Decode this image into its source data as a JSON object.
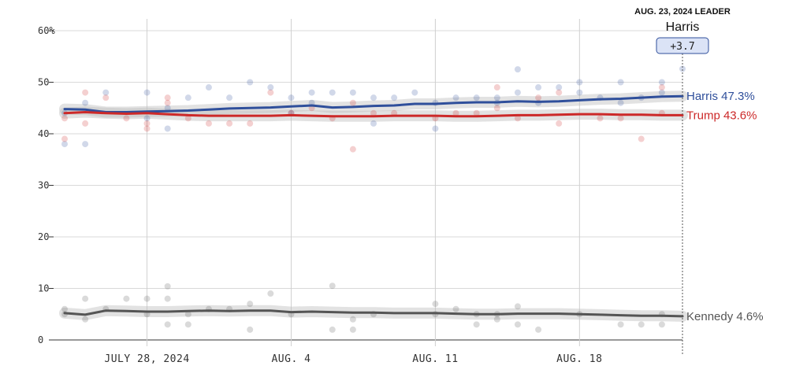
{
  "chart_data": {
    "type": "line",
    "title": "",
    "xlabel": "",
    "ylabel": "",
    "ylim": [
      0,
      60
    ],
    "y_ticks": [
      "0",
      "10",
      "20",
      "30",
      "40",
      "50",
      "60%"
    ],
    "x_ticks": [
      {
        "date": "2024-07-28",
        "label": "JULY 28, 2024"
      },
      {
        "date": "2024-08-04",
        "label": "AUG. 4"
      },
      {
        "date": "2024-08-11",
        "label": "AUG. 11"
      },
      {
        "date": "2024-08-18",
        "label": "AUG. 18"
      }
    ],
    "x_range": [
      "2024-07-24",
      "2024-08-23"
    ],
    "grid": true,
    "leader": {
      "heading": "AUG. 23, 2024 LEADER",
      "name": "Harris",
      "margin": "+3.7",
      "date": "2024-08-23"
    },
    "series": [
      {
        "name": "Harris",
        "end_label": "Harris 47.3%",
        "color": "#2f4f9b",
        "points": [
          [
            "2024-07-24",
            44.8
          ],
          [
            "2024-07-25",
            44.7
          ],
          [
            "2024-07-26",
            44.2
          ],
          [
            "2024-07-27",
            44.2
          ],
          [
            "2024-07-28",
            44.3
          ],
          [
            "2024-07-29",
            44.4
          ],
          [
            "2024-07-30",
            44.5
          ],
          [
            "2024-07-31",
            44.7
          ],
          [
            "2024-08-01",
            44.9
          ],
          [
            "2024-08-02",
            45.0
          ],
          [
            "2024-08-03",
            45.1
          ],
          [
            "2024-08-04",
            45.3
          ],
          [
            "2024-08-05",
            45.5
          ],
          [
            "2024-08-06",
            45.1
          ],
          [
            "2024-08-07",
            45.2
          ],
          [
            "2024-08-08",
            45.4
          ],
          [
            "2024-08-09",
            45.5
          ],
          [
            "2024-08-10",
            45.8
          ],
          [
            "2024-08-11",
            45.8
          ],
          [
            "2024-08-12",
            46.0
          ],
          [
            "2024-08-13",
            46.1
          ],
          [
            "2024-08-14",
            46.1
          ],
          [
            "2024-08-15",
            46.3
          ],
          [
            "2024-08-16",
            46.2
          ],
          [
            "2024-08-17",
            46.3
          ],
          [
            "2024-08-18",
            46.5
          ],
          [
            "2024-08-19",
            46.7
          ],
          [
            "2024-08-20",
            46.8
          ],
          [
            "2024-08-21",
            47.0
          ],
          [
            "2024-08-22",
            47.2
          ],
          [
            "2024-08-23",
            47.3
          ]
        ],
        "polls": [
          [
            "2024-07-24",
            44
          ],
          [
            "2024-07-24",
            38
          ],
          [
            "2024-07-25",
            46
          ],
          [
            "2024-07-25",
            38
          ],
          [
            "2024-07-26",
            48
          ],
          [
            "2024-07-28",
            48
          ],
          [
            "2024-07-28",
            43
          ],
          [
            "2024-07-29",
            41
          ],
          [
            "2024-07-29",
            45
          ],
          [
            "2024-07-30",
            47
          ],
          [
            "2024-07-31",
            49
          ],
          [
            "2024-08-01",
            47
          ],
          [
            "2024-08-02",
            50
          ],
          [
            "2024-08-03",
            49
          ],
          [
            "2024-08-04",
            47
          ],
          [
            "2024-08-04",
            44
          ],
          [
            "2024-08-05",
            48
          ],
          [
            "2024-08-05",
            46
          ],
          [
            "2024-08-06",
            48
          ],
          [
            "2024-08-07",
            48
          ],
          [
            "2024-08-08",
            47
          ],
          [
            "2024-08-08",
            42
          ],
          [
            "2024-08-09",
            47
          ],
          [
            "2024-08-10",
            48
          ],
          [
            "2024-08-11",
            46
          ],
          [
            "2024-08-11",
            41
          ],
          [
            "2024-08-12",
            47
          ],
          [
            "2024-08-13",
            47
          ],
          [
            "2024-08-14",
            46
          ],
          [
            "2024-08-14",
            47
          ],
          [
            "2024-08-15",
            52.5
          ],
          [
            "2024-08-15",
            48
          ],
          [
            "2024-08-16",
            49
          ],
          [
            "2024-08-16",
            46
          ],
          [
            "2024-08-17",
            49
          ],
          [
            "2024-08-18",
            50
          ],
          [
            "2024-08-18",
            48
          ],
          [
            "2024-08-19",
            47
          ],
          [
            "2024-08-20",
            50
          ],
          [
            "2024-08-20",
            46
          ],
          [
            "2024-08-21",
            47
          ],
          [
            "2024-08-22",
            50
          ],
          [
            "2024-08-22",
            48
          ],
          [
            "2024-08-23",
            52.6
          ]
        ]
      },
      {
        "name": "Trump",
        "end_label": "Trump 43.6%",
        "color": "#cc2929",
        "points": [
          [
            "2024-07-24",
            44.0
          ],
          [
            "2024-07-25",
            44.2
          ],
          [
            "2024-07-26",
            44.0
          ],
          [
            "2024-07-27",
            43.9
          ],
          [
            "2024-07-28",
            44.0
          ],
          [
            "2024-07-29",
            43.8
          ],
          [
            "2024-07-30",
            43.6
          ],
          [
            "2024-07-31",
            43.5
          ],
          [
            "2024-08-01",
            43.5
          ],
          [
            "2024-08-02",
            43.5
          ],
          [
            "2024-08-03",
            43.5
          ],
          [
            "2024-08-04",
            43.6
          ],
          [
            "2024-08-05",
            43.5
          ],
          [
            "2024-08-06",
            43.4
          ],
          [
            "2024-08-07",
            43.4
          ],
          [
            "2024-08-08",
            43.4
          ],
          [
            "2024-08-09",
            43.5
          ],
          [
            "2024-08-10",
            43.5
          ],
          [
            "2024-08-11",
            43.5
          ],
          [
            "2024-08-12",
            43.4
          ],
          [
            "2024-08-13",
            43.4
          ],
          [
            "2024-08-14",
            43.5
          ],
          [
            "2024-08-15",
            43.6
          ],
          [
            "2024-08-16",
            43.6
          ],
          [
            "2024-08-17",
            43.7
          ],
          [
            "2024-08-18",
            43.8
          ],
          [
            "2024-08-19",
            43.8
          ],
          [
            "2024-08-20",
            43.7
          ],
          [
            "2024-08-21",
            43.7
          ],
          [
            "2024-08-22",
            43.6
          ],
          [
            "2024-08-23",
            43.6
          ]
        ],
        "polls": [
          [
            "2024-07-24",
            39
          ],
          [
            "2024-07-24",
            43
          ],
          [
            "2024-07-25",
            48
          ],
          [
            "2024-07-25",
            42
          ],
          [
            "2024-07-26",
            47
          ],
          [
            "2024-07-27",
            43
          ],
          [
            "2024-07-28",
            41
          ],
          [
            "2024-07-28",
            42
          ],
          [
            "2024-07-29",
            47
          ],
          [
            "2024-07-29",
            46
          ],
          [
            "2024-07-30",
            43
          ],
          [
            "2024-07-31",
            42
          ],
          [
            "2024-08-01",
            42
          ],
          [
            "2024-08-02",
            42
          ],
          [
            "2024-08-03",
            48
          ],
          [
            "2024-08-04",
            44
          ],
          [
            "2024-08-05",
            45
          ],
          [
            "2024-08-06",
            43
          ],
          [
            "2024-08-07",
            37
          ],
          [
            "2024-08-07",
            46
          ],
          [
            "2024-08-08",
            44
          ],
          [
            "2024-08-09",
            44
          ],
          [
            "2024-08-11",
            43
          ],
          [
            "2024-08-12",
            44
          ],
          [
            "2024-08-13",
            44
          ],
          [
            "2024-08-14",
            49
          ],
          [
            "2024-08-14",
            45
          ],
          [
            "2024-08-15",
            43
          ],
          [
            "2024-08-16",
            47
          ],
          [
            "2024-08-17",
            48
          ],
          [
            "2024-08-17",
            42
          ],
          [
            "2024-08-19",
            43
          ],
          [
            "2024-08-20",
            43
          ],
          [
            "2024-08-21",
            39
          ],
          [
            "2024-08-22",
            49
          ],
          [
            "2024-08-22",
            44
          ]
        ]
      },
      {
        "name": "Kennedy",
        "end_label": "Kennedy 4.6%",
        "color": "#555555",
        "points": [
          [
            "2024-07-24",
            5.2
          ],
          [
            "2024-07-25",
            4.9
          ],
          [
            "2024-07-26",
            5.7
          ],
          [
            "2024-07-27",
            5.6
          ],
          [
            "2024-07-28",
            5.5
          ],
          [
            "2024-07-29",
            5.5
          ],
          [
            "2024-07-30",
            5.6
          ],
          [
            "2024-07-31",
            5.7
          ],
          [
            "2024-08-01",
            5.6
          ],
          [
            "2024-08-02",
            5.7
          ],
          [
            "2024-08-03",
            5.7
          ],
          [
            "2024-08-04",
            5.4
          ],
          [
            "2024-08-05",
            5.5
          ],
          [
            "2024-08-06",
            5.4
          ],
          [
            "2024-08-07",
            5.3
          ],
          [
            "2024-08-08",
            5.3
          ],
          [
            "2024-08-09",
            5.2
          ],
          [
            "2024-08-10",
            5.2
          ],
          [
            "2024-08-11",
            5.2
          ],
          [
            "2024-08-12",
            5.1
          ],
          [
            "2024-08-13",
            5.0
          ],
          [
            "2024-08-14",
            5.0
          ],
          [
            "2024-08-15",
            5.1
          ],
          [
            "2024-08-16",
            5.1
          ],
          [
            "2024-08-17",
            5.1
          ],
          [
            "2024-08-18",
            5.0
          ],
          [
            "2024-08-19",
            4.9
          ],
          [
            "2024-08-20",
            4.8
          ],
          [
            "2024-08-21",
            4.7
          ],
          [
            "2024-08-22",
            4.7
          ],
          [
            "2024-08-23",
            4.6
          ]
        ],
        "polls": [
          [
            "2024-07-24",
            6
          ],
          [
            "2024-07-24",
            5
          ],
          [
            "2024-07-25",
            8
          ],
          [
            "2024-07-25",
            4
          ],
          [
            "2024-07-26",
            6
          ],
          [
            "2024-07-27",
            8
          ],
          [
            "2024-07-28",
            8
          ],
          [
            "2024-07-28",
            5
          ],
          [
            "2024-07-29",
            10.4
          ],
          [
            "2024-07-29",
            8
          ],
          [
            "2024-07-29",
            3
          ],
          [
            "2024-07-30",
            5
          ],
          [
            "2024-07-30",
            3
          ],
          [
            "2024-07-31",
            6
          ],
          [
            "2024-08-01",
            6
          ],
          [
            "2024-08-02",
            7
          ],
          [
            "2024-08-02",
            2
          ],
          [
            "2024-08-03",
            9
          ],
          [
            "2024-08-04",
            5
          ],
          [
            "2024-08-06",
            10.5
          ],
          [
            "2024-08-06",
            2
          ],
          [
            "2024-08-07",
            4
          ],
          [
            "2024-08-07",
            2
          ],
          [
            "2024-08-08",
            5
          ],
          [
            "2024-08-11",
            7
          ],
          [
            "2024-08-11",
            5
          ],
          [
            "2024-08-12",
            6
          ],
          [
            "2024-08-13",
            3
          ],
          [
            "2024-08-13",
            5
          ],
          [
            "2024-08-14",
            5
          ],
          [
            "2024-08-14",
            4
          ],
          [
            "2024-08-15",
            6.5
          ],
          [
            "2024-08-15",
            3
          ],
          [
            "2024-08-16",
            2
          ],
          [
            "2024-08-18",
            5
          ],
          [
            "2024-08-20",
            3
          ],
          [
            "2024-08-21",
            3
          ],
          [
            "2024-08-22",
            5
          ],
          [
            "2024-08-22",
            3
          ]
        ]
      }
    ]
  }
}
